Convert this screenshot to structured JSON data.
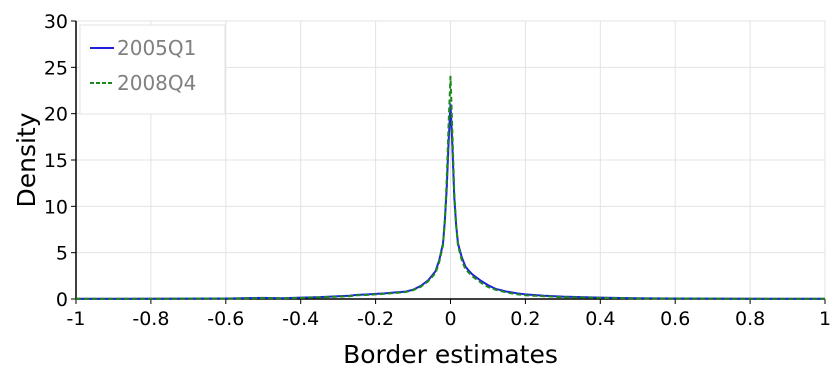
{
  "chart_data": {
    "type": "line",
    "xlabel": "Border estimates",
    "ylabel": "Density",
    "xlim": [
      -1,
      1
    ],
    "ylim": [
      0,
      30
    ],
    "x_ticks": [
      -1,
      -0.8,
      -0.6,
      -0.4,
      -0.2,
      0,
      0.2,
      0.4,
      0.6,
      0.8,
      1
    ],
    "x_tick_labels": [
      "-1",
      "-0.8",
      "-0.6",
      "-0.4",
      "-0.2",
      "0",
      "0.2",
      "0.4",
      "0.6",
      "0.8",
      "1"
    ],
    "y_ticks": [
      0,
      5,
      10,
      15,
      20,
      25,
      30
    ],
    "y_tick_labels": [
      "0",
      "5",
      "10",
      "15",
      "20",
      "25",
      "30"
    ],
    "grid": true,
    "legend_position": "top-left",
    "series": [
      {
        "name": "2005Q1",
        "color": "#1f1fdc",
        "style": "solid",
        "x": [
          -1,
          -0.6,
          -0.5,
          -0.45,
          -0.4,
          -0.35,
          -0.3,
          -0.27,
          -0.25,
          -0.22,
          -0.2,
          -0.18,
          -0.15,
          -0.12,
          -0.1,
          -0.08,
          -0.06,
          -0.04,
          -0.03,
          -0.02,
          -0.015,
          -0.01,
          -0.005,
          0,
          0.005,
          0.01,
          0.015,
          0.02,
          0.03,
          0.04,
          0.05,
          0.06,
          0.08,
          0.1,
          0.12,
          0.15,
          0.18,
          0.2,
          0.25,
          0.3,
          0.4,
          0.5,
          0.6,
          1
        ],
        "y": [
          0.02,
          0.05,
          0.12,
          0.08,
          0.15,
          0.2,
          0.3,
          0.35,
          0.45,
          0.5,
          0.55,
          0.6,
          0.7,
          0.8,
          1.0,
          1.4,
          2.0,
          3.0,
          4.2,
          6.0,
          8.5,
          12.0,
          17.0,
          21.0,
          16.5,
          11.0,
          8.0,
          6.0,
          4.5,
          3.5,
          3.0,
          2.6,
          2.0,
          1.5,
          1.1,
          0.8,
          0.6,
          0.5,
          0.35,
          0.25,
          0.15,
          0.08,
          0.05,
          0.02
        ]
      },
      {
        "name": "2008Q4",
        "color": "#1a8a1a",
        "style": "dashed",
        "x": [
          -1,
          -0.6,
          -0.5,
          -0.45,
          -0.4,
          -0.35,
          -0.3,
          -0.27,
          -0.25,
          -0.22,
          -0.2,
          -0.18,
          -0.15,
          -0.12,
          -0.1,
          -0.08,
          -0.06,
          -0.04,
          -0.03,
          -0.02,
          -0.015,
          -0.01,
          -0.005,
          0,
          0.005,
          0.01,
          0.015,
          0.02,
          0.03,
          0.04,
          0.05,
          0.06,
          0.08,
          0.1,
          0.12,
          0.15,
          0.18,
          0.2,
          0.25,
          0.3,
          0.4,
          0.5,
          0.6,
          1
        ],
        "y": [
          0.02,
          0.04,
          0.1,
          0.07,
          0.12,
          0.18,
          0.25,
          0.3,
          0.4,
          0.45,
          0.5,
          0.55,
          0.65,
          0.75,
          0.95,
          1.3,
          1.9,
          2.8,
          4.0,
          5.8,
          8.5,
          13.0,
          19.0,
          24.0,
          18.0,
          11.5,
          8.0,
          5.8,
          4.2,
          3.2,
          2.8,
          2.4,
          1.8,
          1.3,
          1.0,
          0.7,
          0.5,
          0.4,
          0.3,
          0.2,
          0.12,
          0.06,
          0.04,
          0.02
        ]
      }
    ]
  }
}
